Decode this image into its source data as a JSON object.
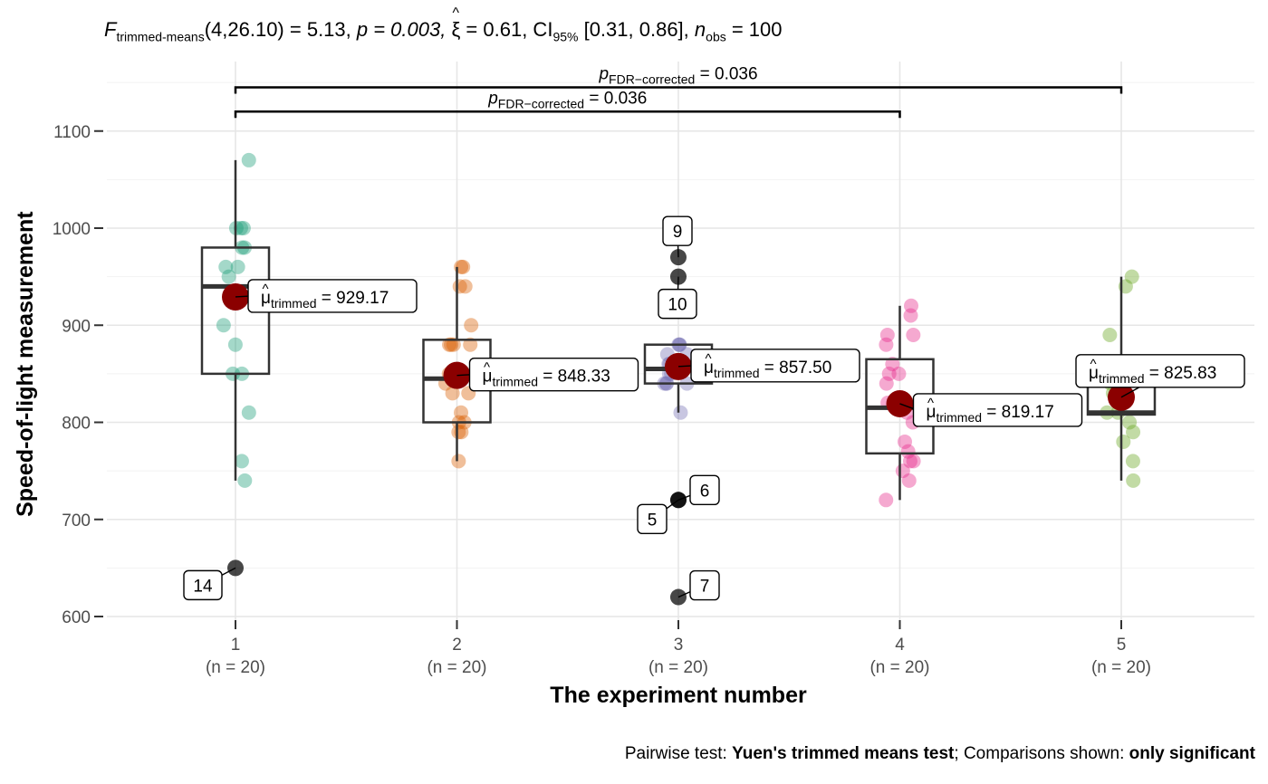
{
  "subtitle_parts": {
    "stat": "trimmed-means",
    "df": "(4,26.10) = 5.13, ",
    "p": "p = 0.003, ",
    "xi": "ξ = 0.61, CI",
    "ci_sub": "95%",
    "ci": " [0.31, 0.86], ",
    "n_sub": "obs",
    "n": " = 100"
  },
  "caption_parts": {
    "a": "Pairwise test: ",
    "b": "Yuen's trimmed means test",
    "c": "; Comparisons shown: ",
    "d": "only significant"
  },
  "chart_data": {
    "type": "scatter",
    "subtype": "box-violin-jitter (ggbetweenstats)",
    "xlabel": "The experiment number",
    "ylabel": "Speed-of-light measurement",
    "ylim": [
      585,
      1150
    ],
    "yticks": [
      600,
      700,
      800,
      900,
      1000,
      1100
    ],
    "grid": true,
    "categories": [
      "1",
      "2",
      "3",
      "4",
      "5"
    ],
    "category_sublabels": [
      "(n = 20)",
      "(n = 20)",
      "(n = 20)",
      "(n = 20)",
      "(n = 20)"
    ],
    "colors": [
      "#1B9E77",
      "#D95F02",
      "#7570B3",
      "#E7298A",
      "#66A61E"
    ],
    "mean_color": "#8B0000",
    "groups": [
      {
        "x": "1",
        "points": [
          1070,
          1000,
          1000,
          1000,
          980,
          980,
          960,
          960,
          950,
          930,
          930,
          900,
          880,
          850,
          850,
          810,
          760,
          740
        ],
        "box": {
          "q1": 850,
          "median": 940,
          "q3": 980,
          "lower": 740,
          "upper": 1070
        },
        "outliers": [
          {
            "y": 650,
            "label": "14"
          }
        ],
        "trimmed_mean": 929.17,
        "mean_label": "929.17"
      },
      {
        "x": "2",
        "points": [
          960,
          960,
          940,
          940,
          900,
          880,
          880,
          880,
          880,
          850,
          850,
          840,
          830,
          830,
          810,
          800,
          800,
          790,
          790,
          760
        ],
        "box": {
          "q1": 800,
          "median": 845,
          "q3": 885,
          "lower": 760,
          "upper": 960
        },
        "outliers": [],
        "trimmed_mean": 848.33,
        "mean_label": "848.33"
      },
      {
        "x": "3",
        "points": [
          880,
          880,
          880,
          870,
          870,
          860,
          860,
          850,
          850,
          840,
          840,
          840,
          840,
          810
        ],
        "box": {
          "q1": 840,
          "median": 855,
          "q3": 880,
          "lower": 810,
          "upper": 880
        },
        "outliers": [
          {
            "y": 970,
            "label": "9"
          },
          {
            "y": 950,
            "label": "10"
          },
          {
            "y": 720,
            "label": "6"
          },
          {
            "y": 720,
            "label": "5"
          },
          {
            "y": 620,
            "label": "7"
          }
        ],
        "trimmed_mean": 857.5,
        "mean_label": "857.50"
      },
      {
        "x": "4",
        "points": [
          920,
          910,
          890,
          890,
          880,
          860,
          850,
          850,
          840,
          820,
          810,
          800,
          780,
          770,
          760,
          760,
          750,
          740,
          720
        ],
        "box": {
          "q1": 768,
          "median": 815,
          "q3": 865,
          "lower": 720,
          "upper": 920
        },
        "outliers": [],
        "trimmed_mean": 819.17,
        "mean_label": "819.17"
      },
      {
        "x": "5",
        "points": [
          950,
          940,
          890,
          850,
          840,
          830,
          820,
          810,
          810,
          800,
          790,
          780,
          760,
          740
        ],
        "box": {
          "q1": 808,
          "median": 810,
          "q3": 845,
          "lower": 740,
          "upper": 950
        },
        "outliers": [],
        "trimmed_mean": 825.83,
        "mean_label": "825.83"
      }
    ],
    "comparisons": [
      {
        "from": "1",
        "to": "5",
        "y": 1145,
        "label_p": "p",
        "label_sub": "FDR−corrected",
        "label_val": " = 0.036"
      },
      {
        "from": "1",
        "to": "4",
        "y": 1120,
        "label_p": "p",
        "label_sub": "FDR−corrected",
        "label_val": " = 0.036"
      }
    ],
    "mean_label_prefix_symbol": "μ",
    "mean_label_prefix_sub": "trimmed"
  }
}
